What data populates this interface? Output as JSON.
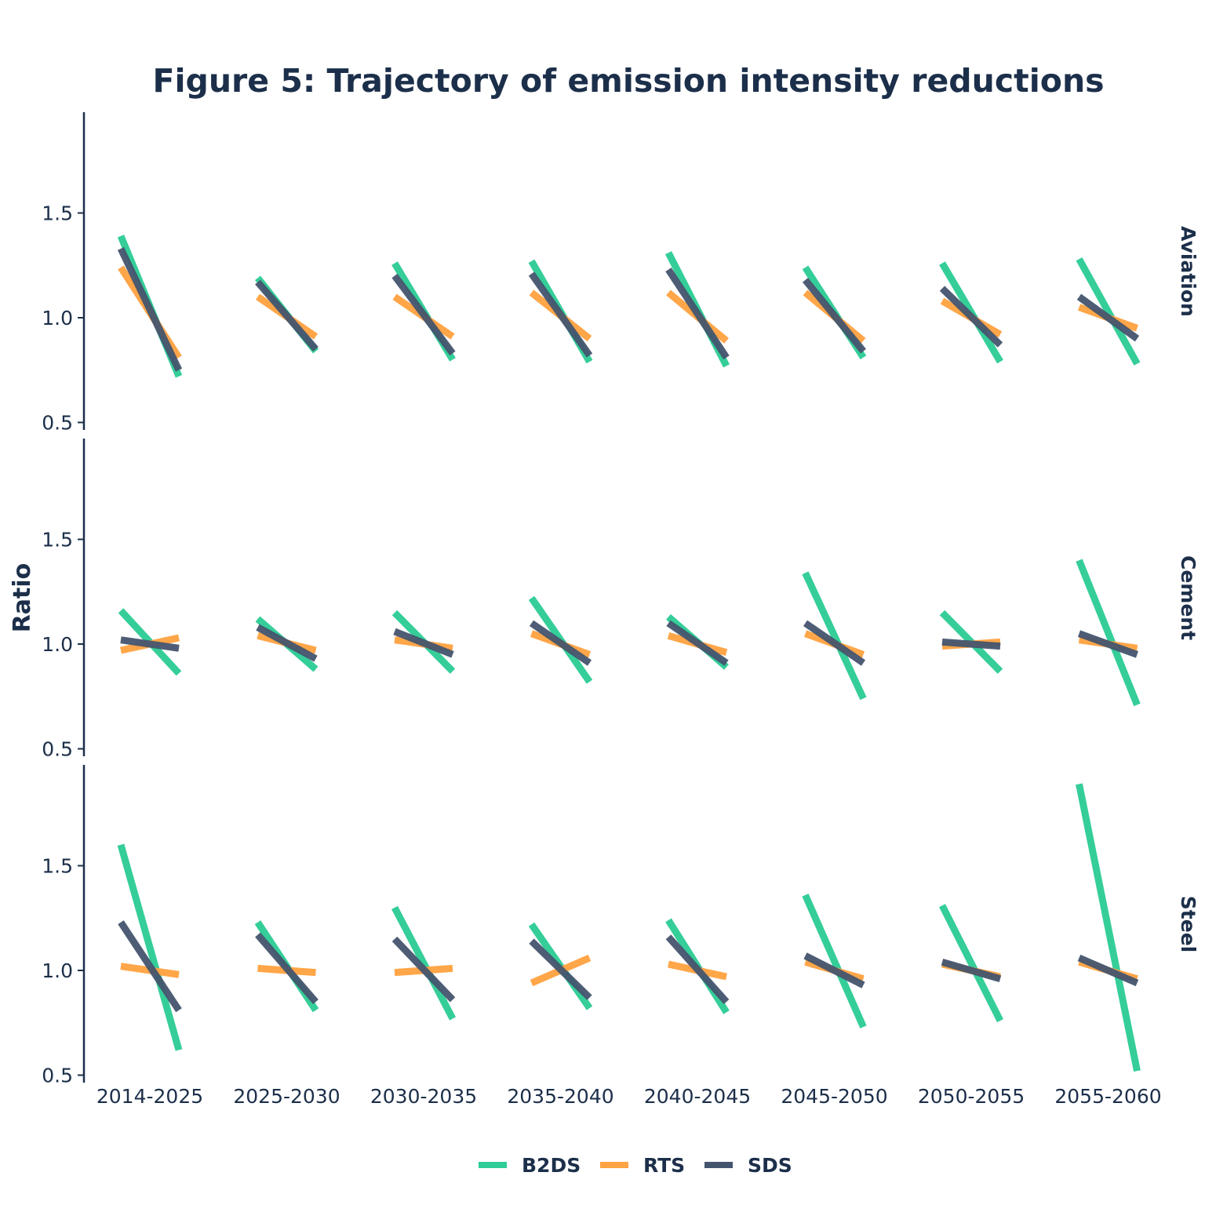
{
  "chart_data": {
    "type": "line",
    "title": "Figure 5: Trajectory of emission intensity reductions",
    "ylabel": "Ratio",
    "xlabel": "",
    "ylim": [
      0.5,
      1.95
    ],
    "yticks": [
      "0.5",
      "1.0",
      "1.5"
    ],
    "ytick_values": [
      0.5,
      1.0,
      1.5
    ],
    "categories": [
      "2014-2025",
      "2025-2030",
      "2030-2035",
      "2035-2040",
      "2040-2045",
      "2045-2050",
      "2050-2055",
      "2055-2060"
    ],
    "legend_position": "bottom-center",
    "grid": false,
    "colors": {
      "B2DS": "#2ecc96",
      "RTS": "#ffa343",
      "SDS": "#44546e"
    },
    "legend": [
      "B2DS",
      "RTS",
      "SDS"
    ],
    "facets": [
      {
        "name": "Aviation",
        "series": [
          {
            "name": "B2DS",
            "start": [
              1.39,
              1.19,
              1.26,
              1.27,
              1.31,
              1.24,
              1.26,
              1.28
            ],
            "end": [
              0.72,
              0.84,
              0.8,
              0.79,
              0.77,
              0.81,
              0.79,
              0.78
            ]
          },
          {
            "name": "RTS",
            "start": [
              1.24,
              1.1,
              1.1,
              1.12,
              1.12,
              1.12,
              1.08,
              1.05
            ],
            "end": [
              0.81,
              0.91,
              0.91,
              0.9,
              0.89,
              0.89,
              0.92,
              0.95
            ]
          },
          {
            "name": "SDS",
            "start": [
              1.33,
              1.17,
              1.2,
              1.21,
              1.23,
              1.18,
              1.14,
              1.1
            ],
            "end": [
              0.75,
              0.85,
              0.83,
              0.82,
              0.81,
              0.84,
              0.87,
              0.9
            ]
          }
        ]
      },
      {
        "name": "Cement",
        "series": [
          {
            "name": "B2DS",
            "start": [
              1.16,
              1.12,
              1.15,
              1.22,
              1.13,
              1.34,
              1.15,
              1.4
            ],
            "end": [
              0.86,
              0.88,
              0.87,
              0.82,
              0.89,
              0.74,
              0.87,
              0.71
            ]
          },
          {
            "name": "RTS",
            "start": [
              0.97,
              1.04,
              1.02,
              1.05,
              1.04,
              1.05,
              0.99,
              1.02
            ],
            "end": [
              1.03,
              0.97,
              0.98,
              0.95,
              0.96,
              0.95,
              1.01,
              0.98
            ]
          },
          {
            "name": "SDS",
            "start": [
              1.02,
              1.08,
              1.06,
              1.1,
              1.1,
              1.1,
              1.01,
              1.05
            ],
            "end": [
              0.98,
              0.93,
              0.95,
              0.91,
              0.91,
              0.91,
              0.99,
              0.95
            ]
          }
        ]
      },
      {
        "name": "Steel",
        "series": [
          {
            "name": "B2DS",
            "start": [
              1.6,
              1.23,
              1.3,
              1.22,
              1.24,
              1.36,
              1.31,
              1.89
            ],
            "end": [
              0.62,
              0.81,
              0.77,
              0.82,
              0.8,
              0.73,
              0.76,
              0.52
            ]
          },
          {
            "name": "RTS",
            "start": [
              1.02,
              1.01,
              0.99,
              0.94,
              1.03,
              1.04,
              1.03,
              1.04
            ],
            "end": [
              0.98,
              0.99,
              1.01,
              1.06,
              0.97,
              0.96,
              0.97,
              0.96
            ]
          },
          {
            "name": "SDS",
            "start": [
              1.23,
              1.17,
              1.15,
              1.14,
              1.16,
              1.07,
              1.04,
              1.06
            ],
            "end": [
              0.81,
              0.85,
              0.86,
              0.87,
              0.85,
              0.93,
              0.96,
              0.94
            ]
          }
        ]
      }
    ]
  }
}
